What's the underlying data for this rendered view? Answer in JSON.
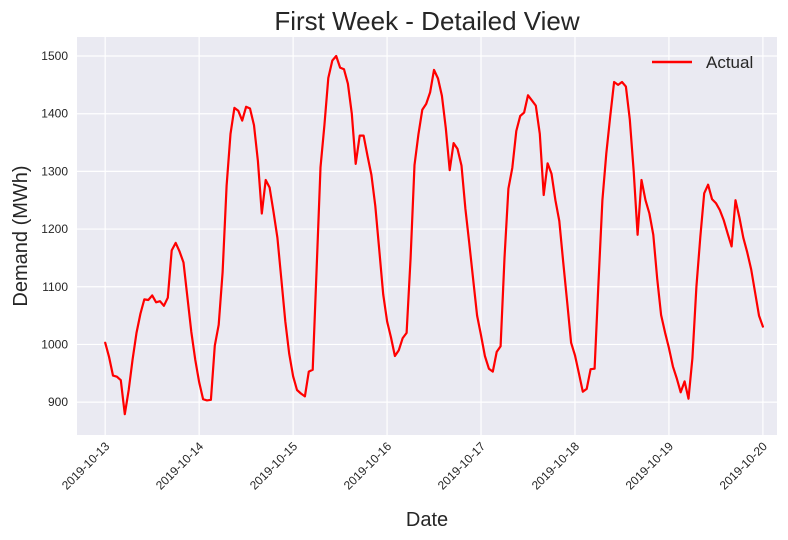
{
  "chart_data": {
    "type": "line",
    "title": "First Week - Detailed View",
    "xlabel": "Date",
    "ylabel": "Demand (MWh)",
    "x_ticks": [
      "2019-10-13",
      "2019-10-14",
      "2019-10-15",
      "2019-10-16",
      "2019-10-17",
      "2019-10-18",
      "2019-10-19",
      "2019-10-20"
    ],
    "y_ticks": [
      900,
      1000,
      1100,
      1200,
      1300,
      1400,
      1500
    ],
    "xlim": [
      "2019-10-12T16:48",
      "2019-10-20T03:36"
    ],
    "ylim": [
      843,
      1533
    ],
    "grid": true,
    "legend_position": "top-right",
    "line_color": "#ff0000",
    "background_color": "#eaeaf2",
    "series": [
      {
        "name": "Actual",
        "x": [
          "2019-10-13T00:00",
          "2019-10-13T01:00",
          "2019-10-13T02:00",
          "2019-10-13T03:00",
          "2019-10-13T04:00",
          "2019-10-13T05:00",
          "2019-10-13T06:00",
          "2019-10-13T07:00",
          "2019-10-13T08:00",
          "2019-10-13T09:00",
          "2019-10-13T10:00",
          "2019-10-13T11:00",
          "2019-10-13T12:00",
          "2019-10-13T13:00",
          "2019-10-13T14:00",
          "2019-10-13T15:00",
          "2019-10-13T16:00",
          "2019-10-13T17:00",
          "2019-10-13T18:00",
          "2019-10-13T19:00",
          "2019-10-13T20:00",
          "2019-10-13T21:00",
          "2019-10-13T22:00",
          "2019-10-13T23:00",
          "2019-10-14T00:00",
          "2019-10-14T01:00",
          "2019-10-14T02:00",
          "2019-10-14T03:00",
          "2019-10-14T04:00",
          "2019-10-14T05:00",
          "2019-10-14T06:00",
          "2019-10-14T07:00",
          "2019-10-14T08:00",
          "2019-10-14T09:00",
          "2019-10-14T10:00",
          "2019-10-14T11:00",
          "2019-10-14T12:00",
          "2019-10-14T13:00",
          "2019-10-14T14:00",
          "2019-10-14T15:00",
          "2019-10-14T16:00",
          "2019-10-14T17:00",
          "2019-10-14T18:00",
          "2019-10-14T19:00",
          "2019-10-14T20:00",
          "2019-10-14T21:00",
          "2019-10-14T22:00",
          "2019-10-14T23:00",
          "2019-10-15T00:00",
          "2019-10-15T01:00",
          "2019-10-15T02:00",
          "2019-10-15T03:00",
          "2019-10-15T04:00",
          "2019-10-15T05:00",
          "2019-10-15T06:00",
          "2019-10-15T07:00",
          "2019-10-15T08:00",
          "2019-10-15T09:00",
          "2019-10-15T10:00",
          "2019-10-15T11:00",
          "2019-10-15T12:00",
          "2019-10-15T13:00",
          "2019-10-15T14:00",
          "2019-10-15T15:00",
          "2019-10-15T16:00",
          "2019-10-15T17:00",
          "2019-10-15T18:00",
          "2019-10-15T19:00",
          "2019-10-15T20:00",
          "2019-10-15T21:00",
          "2019-10-15T22:00",
          "2019-10-15T23:00",
          "2019-10-16T00:00",
          "2019-10-16T01:00",
          "2019-10-16T02:00",
          "2019-10-16T03:00",
          "2019-10-16T04:00",
          "2019-10-16T05:00",
          "2019-10-16T06:00",
          "2019-10-16T07:00",
          "2019-10-16T08:00",
          "2019-10-16T09:00",
          "2019-10-16T10:00",
          "2019-10-16T11:00",
          "2019-10-16T12:00",
          "2019-10-16T13:00",
          "2019-10-16T14:00",
          "2019-10-16T15:00",
          "2019-10-16T16:00",
          "2019-10-16T17:00",
          "2019-10-16T18:00",
          "2019-10-16T19:00",
          "2019-10-16T20:00",
          "2019-10-16T21:00",
          "2019-10-16T22:00",
          "2019-10-16T23:00",
          "2019-10-17T00:00",
          "2019-10-17T01:00",
          "2019-10-17T02:00",
          "2019-10-17T03:00",
          "2019-10-17T04:00",
          "2019-10-17T05:00",
          "2019-10-17T06:00",
          "2019-10-17T07:00",
          "2019-10-17T08:00",
          "2019-10-17T09:00",
          "2019-10-17T10:00",
          "2019-10-17T11:00",
          "2019-10-17T12:00",
          "2019-10-17T13:00",
          "2019-10-17T14:00",
          "2019-10-17T15:00",
          "2019-10-17T16:00",
          "2019-10-17T17:00",
          "2019-10-17T18:00",
          "2019-10-17T19:00",
          "2019-10-17T20:00",
          "2019-10-17T21:00",
          "2019-10-17T22:00",
          "2019-10-17T23:00",
          "2019-10-18T00:00",
          "2019-10-18T01:00",
          "2019-10-18T02:00",
          "2019-10-18T03:00",
          "2019-10-18T04:00",
          "2019-10-18T05:00",
          "2019-10-18T06:00",
          "2019-10-18T07:00",
          "2019-10-18T08:00",
          "2019-10-18T09:00",
          "2019-10-18T10:00",
          "2019-10-18T11:00",
          "2019-10-18T12:00",
          "2019-10-18T13:00",
          "2019-10-18T14:00",
          "2019-10-18T15:00",
          "2019-10-18T16:00",
          "2019-10-18T17:00",
          "2019-10-18T18:00",
          "2019-10-18T19:00",
          "2019-10-18T20:00",
          "2019-10-18T21:00",
          "2019-10-18T22:00",
          "2019-10-18T23:00",
          "2019-10-19T00:00",
          "2019-10-19T01:00",
          "2019-10-19T02:00",
          "2019-10-19T03:00",
          "2019-10-19T04:00",
          "2019-10-19T05:00",
          "2019-10-19T06:00",
          "2019-10-19T07:00",
          "2019-10-19T08:00",
          "2019-10-19T09:00",
          "2019-10-19T10:00",
          "2019-10-19T11:00",
          "2019-10-19T12:00",
          "2019-10-19T13:00",
          "2019-10-19T14:00",
          "2019-10-19T15:00",
          "2019-10-19T16:00",
          "2019-10-19T17:00",
          "2019-10-19T18:00",
          "2019-10-19T19:00",
          "2019-10-19T20:00",
          "2019-10-19T21:00",
          "2019-10-19T22:00",
          "2019-10-19T23:00",
          "2019-10-20T00:00"
        ],
        "values": [
          1003,
          978,
          946,
          944,
          938,
          879,
          921,
          974,
          1020,
          1053,
          1078,
          1077,
          1085,
          1073,
          1075,
          1067,
          1081,
          1163,
          1176,
          1161,
          1142,
          1082,
          1022,
          974,
          935,
          905,
          903,
          904,
          998,
          1034,
          1125,
          1275,
          1365,
          1410,
          1405,
          1388,
          1412,
          1409,
          1380,
          1318,
          1227,
          1285,
          1272,
          1230,
          1185,
          1112,
          1040,
          984,
          945,
          921,
          915,
          910,
          953,
          956,
          1130,
          1307,
          1380,
          1462,
          1492,
          1500,
          1480,
          1477,
          1452,
          1400,
          1313,
          1362,
          1362,
          1327,
          1294,
          1240,
          1165,
          1087,
          1040,
          1012,
          980,
          990,
          1011,
          1020,
          1150,
          1311,
          1364,
          1407,
          1417,
          1437,
          1476,
          1461,
          1431,
          1375,
          1302,
          1349,
          1339,
          1310,
          1235,
          1175,
          1112,
          1050,
          1016,
          980,
          958,
          953,
          987,
          997,
          1150,
          1270,
          1306,
          1370,
          1396,
          1402,
          1432,
          1423,
          1414,
          1365,
          1259,
          1314,
          1296,
          1250,
          1214,
          1143,
          1073,
          1003,
          981,
          950,
          918,
          923,
          957,
          958,
          1108,
          1250,
          1331,
          1395,
          1455,
          1450,
          1455,
          1447,
          1390,
          1300,
          1190,
          1285,
          1250,
          1227,
          1190,
          1114,
          1051,
          1021,
          994,
          962,
          941,
          917,
          936,
          906,
          976,
          1100,
          1186,
          1262,
          1277,
          1252,
          1245,
          1233,
          1215,
          1192,
          1170,
          1250,
          1220,
          1185,
          1160,
          1130,
          1090,
          1050,
          1031
        ]
      }
    ]
  }
}
